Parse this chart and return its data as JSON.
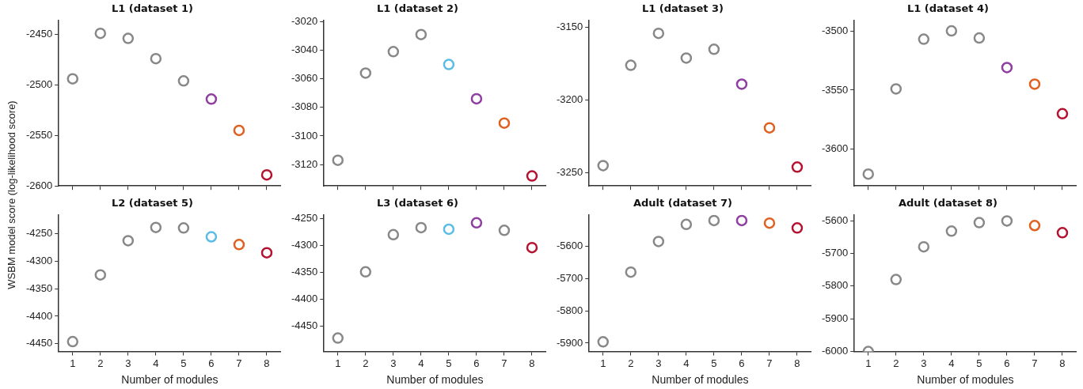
{
  "chart_data": [
    {
      "type": "scatter",
      "title": "L1 (dataset 1)",
      "ylabel": "WSBM model score (log-likelihood score)",
      "categories": [
        "1",
        "2",
        "3",
        "4",
        "5",
        "6",
        "7",
        "8"
      ],
      "tick_labels": "y",
      "marker": "circle",
      "grid": false,
      "ylim": [
        -2600,
        -2436
      ],
      "yticks": [
        -2600,
        -2550,
        -2500,
        -2450
      ],
      "values": [
        -2494,
        -2449,
        -2454,
        -2474,
        -2496,
        -2514,
        -2545,
        -2589
      ],
      "colors": [
        "#888888",
        "#888888",
        "#888888",
        "#888888",
        "#888888",
        "#8e3fa0",
        "#e0601f",
        "#b5122f"
      ]
    },
    {
      "type": "scatter",
      "title": "L1 (dataset 2)",
      "categories": [
        "1",
        "2",
        "3",
        "4",
        "5",
        "6",
        "7",
        "8"
      ],
      "tick_labels": "y",
      "marker": "circle",
      "grid": false,
      "ylim": [
        -3135,
        -3019
      ],
      "yticks": [
        -3120,
        -3100,
        -3080,
        -3060,
        -3040,
        -3020
      ],
      "values": [
        -3117,
        -3056,
        -3041,
        -3029,
        -3050,
        -3074,
        -3091,
        -3128
      ],
      "colors": [
        "#888888",
        "#888888",
        "#888888",
        "#888888",
        "#5bbde6",
        "#8e3fa0",
        "#e0601f",
        "#b5122f"
      ]
    },
    {
      "type": "scatter",
      "title": "L1 (dataset 3)",
      "categories": [
        "1",
        "2",
        "3",
        "4",
        "5",
        "6",
        "7",
        "8"
      ],
      "tick_labels": "y",
      "marker": "circle",
      "grid": false,
      "ylim": [
        -3259,
        -3145
      ],
      "yticks": [
        -3250,
        -3200,
        -3150
      ],
      "values": [
        -3245,
        -3176,
        -3154,
        -3171,
        -3165,
        -3189,
        -3219,
        -3246
      ],
      "colors": [
        "#888888",
        "#888888",
        "#888888",
        "#888888",
        "#888888",
        "#8e3fa0",
        "#e0601f",
        "#b5122f"
      ]
    },
    {
      "type": "scatter",
      "title": "L1 (dataset 4)",
      "categories": [
        "1",
        "2",
        "3",
        "4",
        "5",
        "6",
        "7",
        "8"
      ],
      "tick_labels": "y",
      "marker": "circle",
      "grid": false,
      "ylim": [
        -3631,
        -3491
      ],
      "yticks": [
        -3600,
        -3550,
        -3500
      ],
      "values": [
        -3621,
        -3549,
        -3507,
        -3500,
        -3506,
        -3531,
        -3545,
        -3570
      ],
      "colors": [
        "#888888",
        "#888888",
        "#888888",
        "#888888",
        "#888888",
        "#8e3fa0",
        "#e0601f",
        "#b5122f"
      ]
    },
    {
      "type": "scatter",
      "title": "L2 (dataset 5)",
      "xlabel": "Number of modules",
      "categories": [
        "1",
        "2",
        "3",
        "4",
        "5",
        "6",
        "7",
        "8"
      ],
      "marker": "circle",
      "grid": false,
      "ylim": [
        -4464,
        -4216
      ],
      "yticks": [
        -4450,
        -4400,
        -4350,
        -4300,
        -4250
      ],
      "values": [
        -4446,
        -4325,
        -4263,
        -4239,
        -4240,
        -4256,
        -4270,
        -4285
      ],
      "colors": [
        "#888888",
        "#888888",
        "#888888",
        "#888888",
        "#888888",
        "#5bbde6",
        "#e0601f",
        "#b5122f"
      ]
    },
    {
      "type": "scatter",
      "title": "L3 (dataset 6)",
      "xlabel": "Number of modules",
      "categories": [
        "1",
        "2",
        "3",
        "4",
        "5",
        "6",
        "7",
        "8"
      ],
      "marker": "circle",
      "grid": false,
      "ylim": [
        -4497,
        -4243
      ],
      "yticks": [
        -4450,
        -4400,
        -4350,
        -4300,
        -4250
      ],
      "values": [
        -4472,
        -4349,
        -4280,
        -4267,
        -4270,
        -4258,
        -4272,
        -4304
      ],
      "colors": [
        "#888888",
        "#888888",
        "#888888",
        "#888888",
        "#5bbde6",
        "#8e3fa0",
        "#888888",
        "#b5122f"
      ]
    },
    {
      "type": "scatter",
      "title": "Adult (dataset 7)",
      "xlabel": "Number of modules",
      "categories": [
        "1",
        "2",
        "3",
        "4",
        "5",
        "6",
        "7",
        "8"
      ],
      "marker": "circle",
      "grid": false,
      "ylim": [
        -5926,
        -5502
      ],
      "yticks": [
        -5900,
        -5800,
        -5700,
        -5600
      ],
      "values": [
        -5896,
        -5680,
        -5585,
        -5532,
        -5520,
        -5520,
        -5528,
        -5543
      ],
      "colors": [
        "#888888",
        "#888888",
        "#888888",
        "#888888",
        "#888888",
        "#8e3fa0",
        "#e0601f",
        "#b5122f"
      ]
    },
    {
      "type": "scatter",
      "title": "Adult (dataset 8)",
      "xlabel": "Number of modules",
      "categories": [
        "1",
        "2",
        "3",
        "4",
        "5",
        "6",
        "7",
        "8"
      ],
      "marker": "circle",
      "grid": false,
      "ylim": [
        -6000,
        -5582
      ],
      "yticks": [
        -6000,
        -5900,
        -5800,
        -5700,
        -5600
      ],
      "values": [
        -6000,
        -5780,
        -5680,
        -5632,
        -5606,
        -5601,
        -5615,
        -5637
      ],
      "colors": [
        "#888888",
        "#888888",
        "#888888",
        "#888888",
        "#888888",
        "#888888",
        "#e0601f",
        "#b5122f"
      ]
    }
  ]
}
